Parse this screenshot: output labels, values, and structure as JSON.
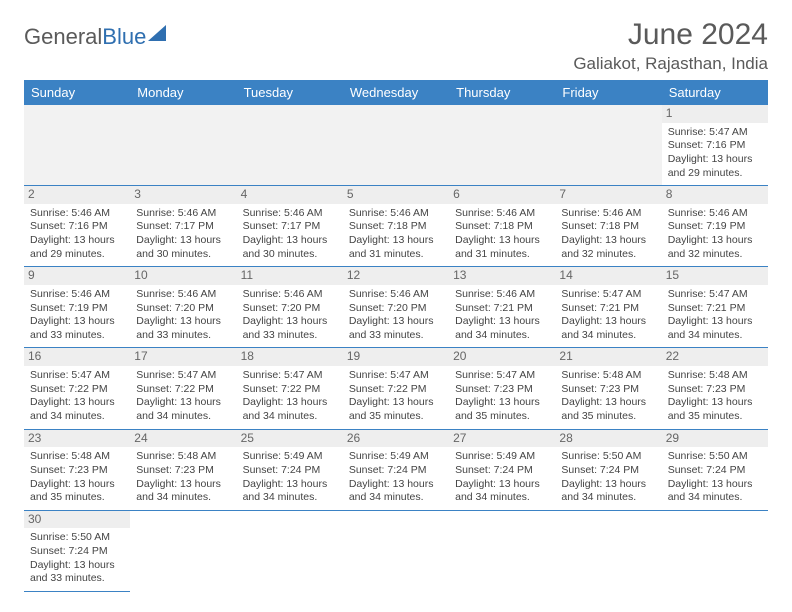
{
  "logo": {
    "part1": "General",
    "part2": "Blue"
  },
  "title": "June 2024",
  "location": "Galiakot, Rajasthan, India",
  "colors": {
    "header_bg": "#3b82c4",
    "header_fg": "#ffffff",
    "grid_line": "#3b82c4",
    "daynum_bg": "#eeeeee",
    "empty_bg": "#f2f2f2",
    "text": "#444444",
    "logo_gray": "#5a5a5a",
    "logo_blue": "#2f6fb0"
  },
  "weekdays": [
    "Sunday",
    "Monday",
    "Tuesday",
    "Wednesday",
    "Thursday",
    "Friday",
    "Saturday"
  ],
  "layout": {
    "start_weekday_index": 6,
    "days_in_month": 30,
    "rows": 6,
    "cols": 7
  },
  "days": {
    "1": {
      "sunrise": "5:47 AM",
      "sunset": "7:16 PM",
      "daylight": "13 hours and 29 minutes."
    },
    "2": {
      "sunrise": "5:46 AM",
      "sunset": "7:16 PM",
      "daylight": "13 hours and 29 minutes."
    },
    "3": {
      "sunrise": "5:46 AM",
      "sunset": "7:17 PM",
      "daylight": "13 hours and 30 minutes."
    },
    "4": {
      "sunrise": "5:46 AM",
      "sunset": "7:17 PM",
      "daylight": "13 hours and 30 minutes."
    },
    "5": {
      "sunrise": "5:46 AM",
      "sunset": "7:18 PM",
      "daylight": "13 hours and 31 minutes."
    },
    "6": {
      "sunrise": "5:46 AM",
      "sunset": "7:18 PM",
      "daylight": "13 hours and 31 minutes."
    },
    "7": {
      "sunrise": "5:46 AM",
      "sunset": "7:18 PM",
      "daylight": "13 hours and 32 minutes."
    },
    "8": {
      "sunrise": "5:46 AM",
      "sunset": "7:19 PM",
      "daylight": "13 hours and 32 minutes."
    },
    "9": {
      "sunrise": "5:46 AM",
      "sunset": "7:19 PM",
      "daylight": "13 hours and 33 minutes."
    },
    "10": {
      "sunrise": "5:46 AM",
      "sunset": "7:20 PM",
      "daylight": "13 hours and 33 minutes."
    },
    "11": {
      "sunrise": "5:46 AM",
      "sunset": "7:20 PM",
      "daylight": "13 hours and 33 minutes."
    },
    "12": {
      "sunrise": "5:46 AM",
      "sunset": "7:20 PM",
      "daylight": "13 hours and 33 minutes."
    },
    "13": {
      "sunrise": "5:46 AM",
      "sunset": "7:21 PM",
      "daylight": "13 hours and 34 minutes."
    },
    "14": {
      "sunrise": "5:47 AM",
      "sunset": "7:21 PM",
      "daylight": "13 hours and 34 minutes."
    },
    "15": {
      "sunrise": "5:47 AM",
      "sunset": "7:21 PM",
      "daylight": "13 hours and 34 minutes."
    },
    "16": {
      "sunrise": "5:47 AM",
      "sunset": "7:22 PM",
      "daylight": "13 hours and 34 minutes."
    },
    "17": {
      "sunrise": "5:47 AM",
      "sunset": "7:22 PM",
      "daylight": "13 hours and 34 minutes."
    },
    "18": {
      "sunrise": "5:47 AM",
      "sunset": "7:22 PM",
      "daylight": "13 hours and 34 minutes."
    },
    "19": {
      "sunrise": "5:47 AM",
      "sunset": "7:22 PM",
      "daylight": "13 hours and 35 minutes."
    },
    "20": {
      "sunrise": "5:47 AM",
      "sunset": "7:23 PM",
      "daylight": "13 hours and 35 minutes."
    },
    "21": {
      "sunrise": "5:48 AM",
      "sunset": "7:23 PM",
      "daylight": "13 hours and 35 minutes."
    },
    "22": {
      "sunrise": "5:48 AM",
      "sunset": "7:23 PM",
      "daylight": "13 hours and 35 minutes."
    },
    "23": {
      "sunrise": "5:48 AM",
      "sunset": "7:23 PM",
      "daylight": "13 hours and 35 minutes."
    },
    "24": {
      "sunrise": "5:48 AM",
      "sunset": "7:23 PM",
      "daylight": "13 hours and 34 minutes."
    },
    "25": {
      "sunrise": "5:49 AM",
      "sunset": "7:24 PM",
      "daylight": "13 hours and 34 minutes."
    },
    "26": {
      "sunrise": "5:49 AM",
      "sunset": "7:24 PM",
      "daylight": "13 hours and 34 minutes."
    },
    "27": {
      "sunrise": "5:49 AM",
      "sunset": "7:24 PM",
      "daylight": "13 hours and 34 minutes."
    },
    "28": {
      "sunrise": "5:50 AM",
      "sunset": "7:24 PM",
      "daylight": "13 hours and 34 minutes."
    },
    "29": {
      "sunrise": "5:50 AM",
      "sunset": "7:24 PM",
      "daylight": "13 hours and 34 minutes."
    },
    "30": {
      "sunrise": "5:50 AM",
      "sunset": "7:24 PM",
      "daylight": "13 hours and 33 minutes."
    }
  },
  "labels": {
    "sunrise": "Sunrise: ",
    "sunset": "Sunset: ",
    "daylight": "Daylight: "
  }
}
